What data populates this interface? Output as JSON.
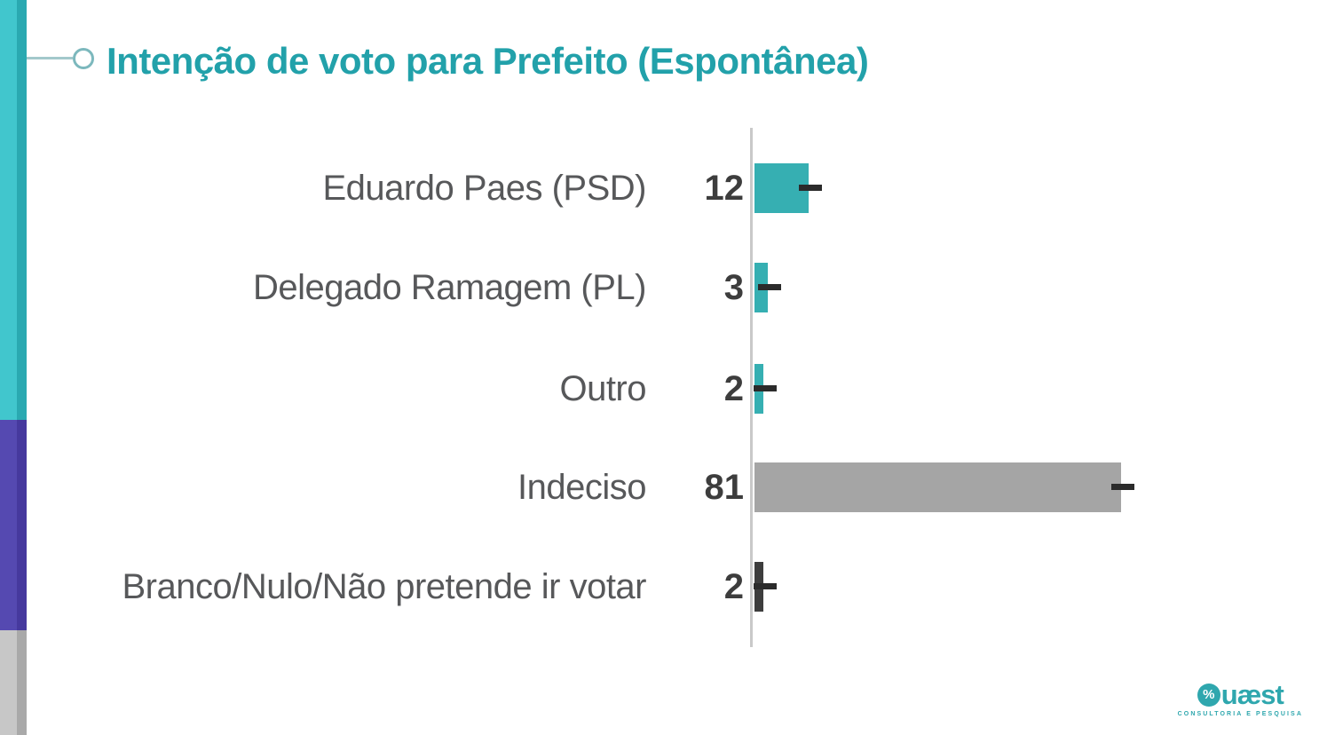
{
  "header": {
    "title": "Intenção de voto para Prefeito (Espontânea)",
    "accent_color": "#22a1aa",
    "connector_color": "#7cb8bd"
  },
  "stripe": {
    "teal_light": "#41c6cd",
    "teal_dark": "#2aa9b1",
    "purple_light": "#5549b1",
    "purple_dark": "#46399e",
    "gray_light": "#c7c7c7",
    "gray_dark": "#a9a9a9"
  },
  "chart_data": {
    "type": "bar",
    "orientation": "horizontal",
    "title": "Intenção de voto para Prefeito (Espontânea)",
    "categories": [
      "Eduardo Paes (PSD)",
      "Delegado Ramagem (PL)",
      "Outro",
      "Indeciso",
      "Branco/Nulo/Não pretende ir votar"
    ],
    "values": [
      12,
      3,
      2,
      81,
      2
    ],
    "bar_colors": [
      "#36afb2",
      "#36afb2",
      "#36afb2",
      "#a5a5a5",
      "#3d3d3d"
    ],
    "xlim": [
      0,
      100
    ],
    "grid": false,
    "legend": false,
    "value_label_position": "left-of-axis",
    "value_label_color": "#3d3d3d",
    "category_label_color": "#57585a",
    "axis_color": "#c9c9c9",
    "marker": "dash-at-bar-end",
    "marker_color": "#2b2b2b"
  },
  "logo": {
    "q_glyph": "%",
    "brand_rest": "uæst",
    "brand": "Quæst",
    "tagline": "CONSULTORIA E PESQUISA",
    "color": "#2fa7ae"
  }
}
